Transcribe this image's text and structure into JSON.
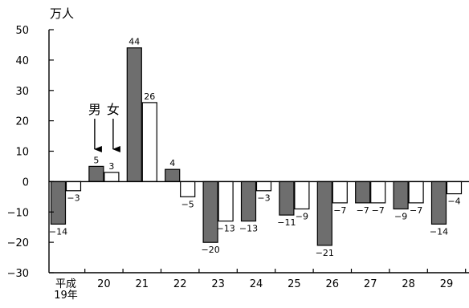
{
  "chart_data": {
    "type": "bar",
    "ylabel": "万人",
    "ylim": [
      -30,
      50
    ],
    "yticks": [
      50,
      40,
      30,
      20,
      10,
      0,
      -10,
      -20,
      -30
    ],
    "categories": [
      "平成\n19年",
      "20",
      "21",
      "22",
      "23",
      "24",
      "25",
      "26",
      "27",
      "28",
      "29"
    ],
    "series": [
      {
        "name": "男",
        "color": "#6e6e6e",
        "values": [
          -14,
          5,
          44,
          4,
          -20,
          -13,
          -11,
          -21,
          -7,
          -9,
          -14
        ]
      },
      {
        "name": "女",
        "color": "#ffffff",
        "values": [
          -3,
          3,
          26,
          -5,
          -13,
          -3,
          -9,
          -7,
          -7,
          -7,
          -4
        ]
      }
    ],
    "data_labels": [
      [
        "−14",
        "5",
        "44",
        "4",
        "−20",
        "−13",
        "−11",
        "−21",
        "−7",
        "−9",
        "−14"
      ],
      [
        "−3",
        "3",
        "26",
        "−5",
        "−13",
        "−3",
        "−9",
        "−7",
        "−7",
        "−7",
        "−4"
      ]
    ],
    "annotation": {
      "labels": [
        "男",
        "女"
      ],
      "target_category": "20",
      "style": "arrows pointing down to bars"
    },
    "grid": false,
    "legend": "none"
  }
}
